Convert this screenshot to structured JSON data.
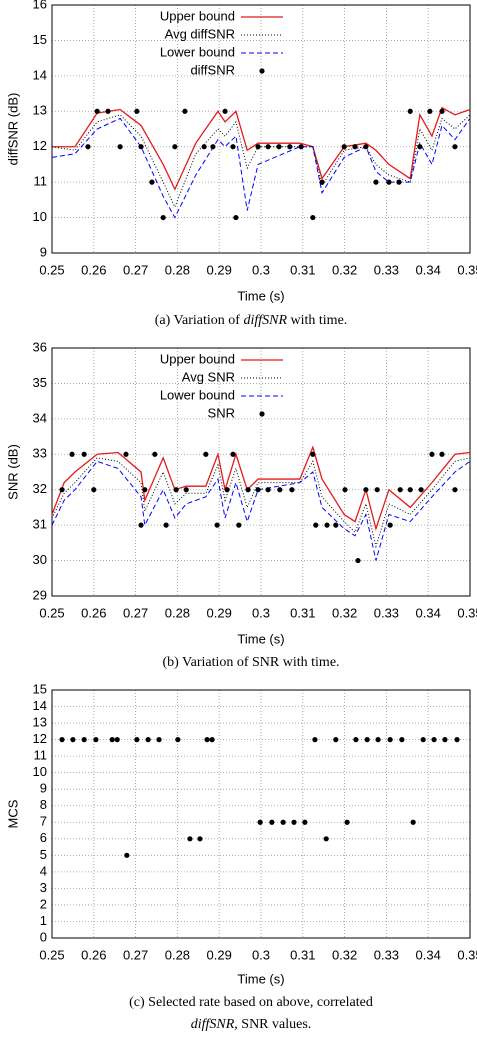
{
  "chart_data": [
    {
      "type": "line",
      "ylabel": "diffSNR (dB)",
      "xlabel": "Time (s)",
      "caption": [
        [
          {
            "text": "(a) Variation of "
          },
          {
            "text": "diffSNR",
            "italic": true
          },
          {
            "text": " with time."
          }
        ]
      ],
      "xlim": [
        0.25,
        0.35
      ],
      "xticks": [
        0.25,
        0.26,
        0.27,
        0.28,
        0.29,
        0.3,
        0.31,
        0.32,
        0.33,
        0.34,
        0.35
      ],
      "ylim": [
        9,
        16
      ],
      "yticks": [
        9,
        10,
        11,
        12,
        13,
        14,
        15,
        16
      ],
      "grid": true,
      "legend": "upper left",
      "series": [
        {
          "name": "Upper bound",
          "color": "#e41a1c",
          "line_style": "solid",
          "x": [
            0.25,
            0.2555,
            0.2608,
            0.2663,
            0.2713,
            0.2766,
            0.2794,
            0.2844,
            0.2897,
            0.2914,
            0.294,
            0.2967,
            0.2993,
            0.3093,
            0.3124,
            0.3146,
            0.3199,
            0.3251,
            0.3275,
            0.3306,
            0.3357,
            0.338,
            0.3409,
            0.3433,
            0.3464,
            0.35
          ],
          "values": [
            12,
            12,
            12.95,
            13.05,
            12.6,
            11.5,
            10.8,
            12.1,
            13,
            12.7,
            13,
            11.9,
            12.1,
            12.1,
            12,
            11.1,
            12,
            12.1,
            11.9,
            11.5,
            11.1,
            12.9,
            12.3,
            13.1,
            12.9,
            13.05
          ]
        },
        {
          "name": "Avg diffSNR",
          "color": "#000000",
          "line_style": "dotted",
          "x": [
            0.25,
            0.2555,
            0.2608,
            0.2663,
            0.2713,
            0.2766,
            0.2794,
            0.2844,
            0.2897,
            0.2914,
            0.294,
            0.2967,
            0.2993,
            0.3093,
            0.3124,
            0.3146,
            0.3199,
            0.3251,
            0.3275,
            0.3306,
            0.3357,
            0.338,
            0.3409,
            0.3433,
            0.3464,
            0.35
          ],
          "values": [
            12,
            11.9,
            12.7,
            12.9,
            12.3,
            11,
            10.3,
            11.8,
            12.5,
            12.3,
            12.7,
            11.4,
            12,
            12,
            12,
            10.9,
            11.9,
            12,
            11.5,
            11.2,
            11,
            12.5,
            11.9,
            12.8,
            12.5,
            12.9
          ]
        },
        {
          "name": "Lower bound",
          "color": "#0000ff",
          "line_style": "dashed",
          "x": [
            0.25,
            0.2555,
            0.2608,
            0.2663,
            0.2713,
            0.2766,
            0.2794,
            0.2844,
            0.2897,
            0.2914,
            0.294,
            0.2967,
            0.2993,
            0.3093,
            0.3124,
            0.3146,
            0.3199,
            0.3251,
            0.3275,
            0.3306,
            0.3357,
            0.338,
            0.3409,
            0.3433,
            0.3464,
            0.35
          ],
          "values": [
            11.7,
            11.8,
            12.5,
            12.8,
            12,
            10.6,
            10,
            11.2,
            12.2,
            12,
            12.3,
            10.2,
            11.5,
            12,
            12,
            10.7,
            11.7,
            12,
            11.3,
            11,
            11,
            12.1,
            11.5,
            12.6,
            12.2,
            12.8
          ]
        },
        {
          "name": "diffSNR",
          "color": "#000000",
          "marker": "dot",
          "x": [
            0.2586,
            0.2608,
            0.2634,
            0.2663,
            0.2703,
            0.2713,
            0.2739,
            0.2766,
            0.2794,
            0.2818,
            0.2864,
            0.2885,
            0.2914,
            0.2933,
            0.294,
            0.2993,
            0.3017,
            0.3043,
            0.3069,
            0.3096,
            0.3124,
            0.3146,
            0.3199,
            0.3225,
            0.3251,
            0.3275,
            0.3306,
            0.333,
            0.3357,
            0.338,
            0.3404,
            0.3433,
            0.3464
          ],
          "values": [
            12,
            13,
            13,
            12,
            13,
            12,
            11,
            10,
            12,
            13,
            12,
            12,
            13,
            12,
            10,
            12,
            12,
            12,
            12,
            12,
            10,
            11,
            12,
            12,
            12,
            11,
            11,
            11,
            13,
            12,
            13,
            13,
            12
          ]
        }
      ]
    },
    {
      "type": "line",
      "ylabel": "SNR (dB)",
      "xlabel": "Time (s)",
      "caption": [
        [
          {
            "text": "(b) Variation of SNR with time."
          }
        ]
      ],
      "xlim": [
        0.25,
        0.35
      ],
      "xticks": [
        0.25,
        0.26,
        0.27,
        0.28,
        0.29,
        0.3,
        0.31,
        0.32,
        0.33,
        0.34,
        0.35
      ],
      "ylim": [
        29,
        36
      ],
      "yticks": [
        29,
        30,
        31,
        32,
        33,
        34,
        35,
        36
      ],
      "grid": true,
      "legend": "upper left",
      "series": [
        {
          "name": "Upper bound",
          "color": "#e41a1c",
          "line_style": "solid",
          "x": [
            0.25,
            0.2529,
            0.2555,
            0.2608,
            0.2658,
            0.2713,
            0.2722,
            0.2766,
            0.2794,
            0.2821,
            0.2868,
            0.2897,
            0.2914,
            0.294,
            0.2967,
            0.2993,
            0.3093,
            0.3124,
            0.3146,
            0.3199,
            0.3225,
            0.3251,
            0.3275,
            0.3306,
            0.3357,
            0.3409,
            0.3464,
            0.35
          ],
          "values": [
            31.3,
            32.2,
            32.5,
            33,
            33.05,
            32.5,
            31.7,
            32.9,
            32,
            32.1,
            32.1,
            33,
            32,
            33,
            32,
            32.3,
            32.3,
            33.2,
            32.3,
            31.3,
            31.1,
            32,
            30.9,
            32,
            31.5,
            32.2,
            33,
            33.05
          ]
        },
        {
          "name": "Avg SNR",
          "color": "#000000",
          "line_style": "dotted",
          "x": [
            0.25,
            0.2529,
            0.2555,
            0.2608,
            0.2658,
            0.2713,
            0.2722,
            0.2766,
            0.2794,
            0.2821,
            0.2868,
            0.2897,
            0.2914,
            0.294,
            0.2967,
            0.2993,
            0.3093,
            0.3124,
            0.3146,
            0.3199,
            0.3225,
            0.3251,
            0.3275,
            0.3306,
            0.3357,
            0.3409,
            0.3464,
            0.35
          ],
          "values": [
            31.2,
            31.9,
            32.2,
            32.9,
            32.8,
            32.2,
            31.4,
            32.5,
            31.6,
            31.9,
            31.9,
            32.7,
            31.7,
            32.6,
            31.5,
            32.2,
            32.2,
            32.8,
            31.8,
            31.1,
            30.8,
            31.6,
            30.4,
            31.6,
            31.3,
            32,
            32.8,
            32.9
          ]
        },
        {
          "name": "Lower bound",
          "color": "#0000ff",
          "line_style": "dashed",
          "x": [
            0.25,
            0.2529,
            0.2555,
            0.2608,
            0.2658,
            0.2713,
            0.2722,
            0.2766,
            0.2794,
            0.2821,
            0.2868,
            0.2897,
            0.2914,
            0.294,
            0.2967,
            0.2993,
            0.3093,
            0.3124,
            0.3146,
            0.3199,
            0.3225,
            0.3251,
            0.3275,
            0.3306,
            0.3357,
            0.3409,
            0.3464,
            0.35
          ],
          "values": [
            31,
            31.7,
            32,
            32.8,
            32.6,
            31.8,
            31,
            32,
            31.2,
            31.6,
            31.8,
            32.3,
            31.2,
            32.2,
            31.1,
            32,
            32.2,
            32.5,
            31.5,
            30.9,
            30.7,
            31.3,
            30,
            31.3,
            31.1,
            31.8,
            32.5,
            32.8
          ]
        },
        {
          "name": "SNR",
          "color": "#000000",
          "marker": "dot",
          "x": [
            0.2524,
            0.2548,
            0.2577,
            0.26,
            0.2677,
            0.2713,
            0.2722,
            0.2746,
            0.2773,
            0.2797,
            0.2821,
            0.2868,
            0.2895,
            0.2919,
            0.2933,
            0.2947,
            0.2969,
            0.2993,
            0.3017,
            0.3045,
            0.3074,
            0.3124,
            0.3131,
            0.3158,
            0.3179,
            0.3201,
            0.3232,
            0.3251,
            0.3278,
            0.3309,
            0.3333,
            0.3357,
            0.3383,
            0.3409,
            0.3433,
            0.3464
          ],
          "values": [
            32,
            33,
            33,
            32,
            33,
            31,
            32,
            33,
            31,
            32,
            32,
            33,
            31,
            32,
            33,
            31,
            32,
            32,
            32,
            32,
            32,
            33,
            31,
            31,
            31,
            32,
            30,
            32,
            32,
            31,
            32,
            32,
            32,
            33,
            33,
            32
          ]
        }
      ]
    },
    {
      "type": "scatter",
      "ylabel": "MCS",
      "xlabel": "Time (s)",
      "caption": [
        [
          {
            "text": "(c) Selected rate based on above, correlated"
          }
        ],
        [
          {
            "text": "diffSNR",
            "italic": true
          },
          {
            "text": ", SNR values."
          }
        ]
      ],
      "xlim": [
        0.25,
        0.35
      ],
      "xticks": [
        0.25,
        0.26,
        0.27,
        0.28,
        0.29,
        0.3,
        0.31,
        0.32,
        0.33,
        0.34,
        0.35
      ],
      "ylim": [
        0,
        15
      ],
      "yticks": [
        0,
        1,
        2,
        3,
        4,
        5,
        6,
        7,
        8,
        9,
        10,
        11,
        12,
        13,
        14,
        15
      ],
      "grid": true,
      "color": "#000000",
      "x": [
        0.2524,
        0.255,
        0.2577,
        0.2605,
        0.2644,
        0.2656,
        0.2679,
        0.2703,
        0.273,
        0.2756,
        0.2801,
        0.283,
        0.2854,
        0.2871,
        0.2883,
        0.2998,
        0.3026,
        0.3053,
        0.3079,
        0.3105,
        0.3129,
        0.3156,
        0.3179,
        0.3206,
        0.3227,
        0.3254,
        0.328,
        0.3309,
        0.3337,
        0.3364,
        0.3388,
        0.3414,
        0.344,
        0.3469
      ],
      "values": [
        12,
        12,
        12,
        12,
        12,
        12,
        5,
        12,
        12,
        12,
        12,
        6,
        6,
        12,
        12,
        7,
        7,
        7,
        7,
        7,
        12,
        6,
        12,
        7,
        12,
        12,
        12,
        12,
        12,
        7,
        12,
        12,
        12,
        12
      ]
    }
  ]
}
